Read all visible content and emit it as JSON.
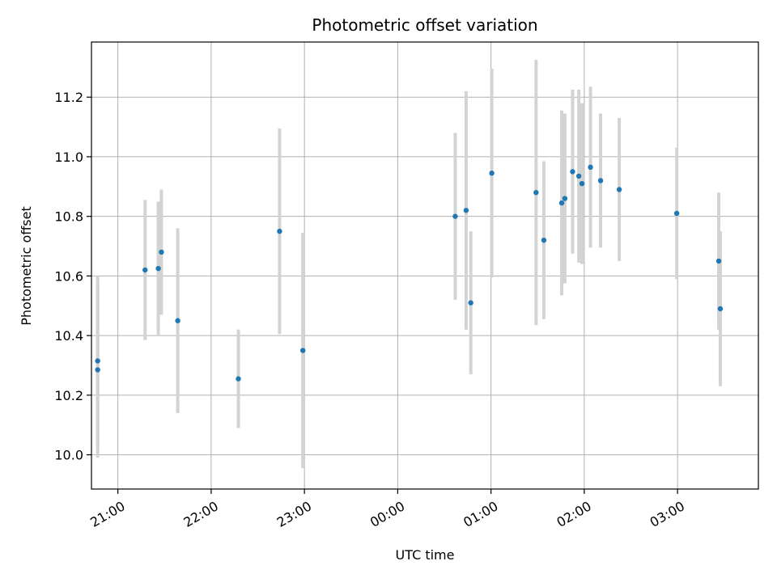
{
  "chart_data": {
    "type": "scatter",
    "title": "Photometric offset variation",
    "xlabel": "UTC time",
    "ylabel": "Photometric offset",
    "x_unit": "UTC datetime",
    "xlim": [
      "2024-01-01T20:43:00",
      "2024-01-02T03:52:00"
    ],
    "ylim": [
      9.885,
      11.385
    ],
    "x_ticks": [
      {
        "t": "2024-01-01T21:00:00",
        "label": "21:00"
      },
      {
        "t": "2024-01-01T22:00:00",
        "label": "22:00"
      },
      {
        "t": "2024-01-01T23:00:00",
        "label": "23:00"
      },
      {
        "t": "2024-01-02T00:00:00",
        "label": "00:00"
      },
      {
        "t": "2024-01-02T01:00:00",
        "label": "01:00"
      },
      {
        "t": "2024-01-02T02:00:00",
        "label": "02:00"
      },
      {
        "t": "2024-01-02T03:00:00",
        "label": "03:00"
      }
    ],
    "y_ticks": [
      10.0,
      10.2,
      10.4,
      10.6,
      10.8,
      11.0,
      11.2
    ],
    "y_tick_labels": [
      "10.0",
      "10.2",
      "10.4",
      "10.6",
      "10.8",
      "11.0",
      "11.2"
    ],
    "grid": true,
    "legend": null,
    "date_date": "2024-01-01",
    "points": [
      {
        "t": "2024-01-01T20:47:00",
        "y": 10.315,
        "yerr": 0.285
      },
      {
        "t": "2024-01-01T20:47:00",
        "y": 10.285,
        "yerr": 0.295
      },
      {
        "t": "2024-01-01T21:17:30",
        "y": 10.62,
        "yerr": 0.235
      },
      {
        "t": "2024-01-01T21:26:00",
        "y": 10.625,
        "yerr": 0.225
      },
      {
        "t": "2024-01-01T21:28:00",
        "y": 10.68,
        "yerr": 0.21
      },
      {
        "t": "2024-01-01T21:38:30",
        "y": 10.45,
        "yerr": 0.31
      },
      {
        "t": "2024-01-01T22:17:30",
        "y": 10.255,
        "yerr": 0.165
      },
      {
        "t": "2024-01-01T22:44:00",
        "y": 10.75,
        "yerr": 0.345
      },
      {
        "t": "2024-01-01T22:59:00",
        "y": 10.35,
        "yerr": 0.395
      },
      {
        "t": "2024-01-02T00:37:00",
        "y": 10.8,
        "yerr": 0.28
      },
      {
        "t": "2024-01-02T00:44:00",
        "y": 10.82,
        "yerr": 0.4
      },
      {
        "t": "2024-01-02T00:47:00",
        "y": 10.51,
        "yerr": 0.24
      },
      {
        "t": "2024-01-02T01:00:30",
        "y": 10.945,
        "yerr": 0.35
      },
      {
        "t": "2024-01-02T01:29:00",
        "y": 10.88,
        "yerr": 0.445
      },
      {
        "t": "2024-01-02T01:34:00",
        "y": 10.72,
        "yerr": 0.265
      },
      {
        "t": "2024-01-02T01:45:30",
        "y": 10.845,
        "yerr": 0.31
      },
      {
        "t": "2024-01-02T01:47:30",
        "y": 10.86,
        "yerr": 0.285
      },
      {
        "t": "2024-01-02T01:52:30",
        "y": 10.95,
        "yerr": 0.275
      },
      {
        "t": "2024-01-02T01:56:30",
        "y": 10.935,
        "yerr": 0.29
      },
      {
        "t": "2024-01-02T01:58:30",
        "y": 10.91,
        "yerr": 0.27
      },
      {
        "t": "2024-01-02T02:04:00",
        "y": 10.965,
        "yerr": 0.27
      },
      {
        "t": "2024-01-02T02:10:30",
        "y": 10.92,
        "yerr": 0.225
      },
      {
        "t": "2024-01-02T02:22:30",
        "y": 10.89,
        "yerr": 0.24
      },
      {
        "t": "2024-01-02T02:59:30",
        "y": 10.81,
        "yerr": 0.22
      },
      {
        "t": "2024-01-02T03:26:30",
        "y": 10.65,
        "yerr": 0.23
      },
      {
        "t": "2024-01-02T03:27:30",
        "y": 10.49,
        "yerr": 0.26
      }
    ],
    "colors": {
      "point": "#1f77b4",
      "errorbar": "#d3d3d3",
      "grid": "#b0b0b0",
      "axes": "#000000"
    }
  }
}
